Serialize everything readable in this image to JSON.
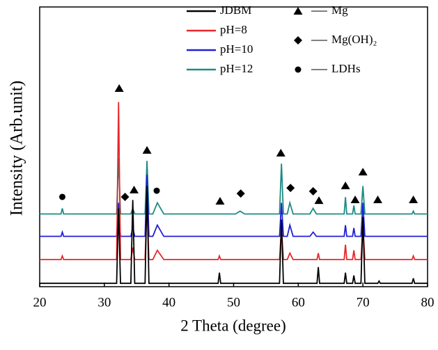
{
  "chart_data": {
    "type": "line",
    "x_label": "2 Theta (degree)",
    "y_label": "Intensity (Arb.unit)",
    "xlim": [
      20,
      80
    ],
    "xticks": [
      20,
      30,
      40,
      50,
      60,
      70,
      80
    ],
    "ylim": [
      0,
      100
    ],
    "series": [
      {
        "name": "JDBM",
        "color": "#000000",
        "x": [
          20,
          31.9,
          32.2,
          32.5,
          34.1,
          34.4,
          34.7,
          36.3,
          36.6,
          36.9,
          47.6,
          47.8,
          48.0,
          57.1,
          57.4,
          57.7,
          62.9,
          63.1,
          63.3,
          67.1,
          67.3,
          67.5,
          68.4,
          68.6,
          68.8,
          69.7,
          70.0,
          70.3,
          72.3,
          72.5,
          72.7,
          77.6,
          77.8,
          78.0,
          80
        ],
        "values": [
          1.2,
          1.2,
          28,
          1.2,
          1.2,
          31,
          1.2,
          1.2,
          36,
          1.2,
          1.2,
          5,
          1.2,
          1.2,
          24,
          1.2,
          1.2,
          7,
          1.2,
          1.2,
          5,
          1.2,
          1.2,
          4,
          1.2,
          1.2,
          25,
          1.2,
          1.2,
          2,
          1.2,
          1.2,
          3,
          1.2,
          1.2
        ]
      },
      {
        "name": "pH=8",
        "color": "#e8262a",
        "x": [
          20,
          23.3,
          23.5,
          23.7,
          31.9,
          32.2,
          32.5,
          34.1,
          34.4,
          34.7,
          36.3,
          36.6,
          36.9,
          37.5,
          38.2,
          39.2,
          47.6,
          47.8,
          48.0,
          57.1,
          57.4,
          57.7,
          58.3,
          58.7,
          59.2,
          62.9,
          63.1,
          63.3,
          67.1,
          67.3,
          67.5,
          68.4,
          68.6,
          68.8,
          69.7,
          70.0,
          70.3,
          77.6,
          77.8,
          78.0,
          80
        ],
        "values": [
          9.7,
          9.7,
          11,
          9.7,
          9.7,
          66,
          9.7,
          9.7,
          14,
          9.7,
          9.7,
          30,
          9.7,
          9.7,
          13,
          9.7,
          9.7,
          11,
          9.7,
          9.7,
          21,
          9.7,
          9.7,
          12,
          9.7,
          9.7,
          12,
          9.7,
          9.7,
          15,
          9.7,
          9.7,
          13,
          9.7,
          9.7,
          22,
          9.7,
          9.7,
          11,
          9.7,
          9.7
        ]
      },
      {
        "name": "pH=10",
        "color": "#1f1fd6",
        "x": [
          20,
          23.3,
          23.5,
          23.7,
          31.9,
          32.2,
          32.5,
          34.1,
          34.4,
          34.7,
          36.3,
          36.6,
          36.9,
          37.5,
          38.2,
          39.2,
          57.1,
          57.4,
          57.7,
          58.3,
          58.7,
          59.2,
          61.8,
          62.3,
          62.8,
          67.1,
          67.3,
          67.5,
          68.4,
          68.6,
          68.8,
          69.7,
          70.0,
          70.3,
          80
        ],
        "values": [
          18,
          18,
          19.5,
          18,
          18,
          30,
          18,
          18,
          21,
          18,
          18,
          40,
          18,
          18,
          22,
          18,
          18,
          30,
          18,
          18,
          22,
          18,
          18,
          19.5,
          18,
          18,
          22,
          18,
          18,
          21,
          18,
          18,
          30,
          18,
          18
        ]
      },
      {
        "name": "pH=12",
        "color": "#1e8a84",
        "x": [
          20,
          23.3,
          23.5,
          23.7,
          31.9,
          32.2,
          32.5,
          34.1,
          34.4,
          34.7,
          36.3,
          36.6,
          36.9,
          37.5,
          38.2,
          39.2,
          50.3,
          51.0,
          51.7,
          57.1,
          57.4,
          57.7,
          58.3,
          58.7,
          59.2,
          61.8,
          62.3,
          62.8,
          67.1,
          67.3,
          67.5,
          68.4,
          68.6,
          68.8,
          69.7,
          70.0,
          70.3,
          77.6,
          77.8,
          78.0,
          80
        ],
        "values": [
          26,
          26,
          28,
          26,
          26,
          46,
          26,
          26,
          28,
          26,
          26,
          45,
          26,
          26,
          30,
          26,
          26,
          27,
          26,
          26,
          44,
          26,
          26,
          30,
          26,
          26,
          28,
          26,
          26,
          32,
          26,
          26,
          29,
          26,
          26,
          36,
          26,
          26,
          27,
          26,
          26
        ]
      }
    ],
    "phases": [
      {
        "name": "Mg",
        "symbol": "triangle",
        "x": [
          32.3,
          34.6,
          36.6,
          47.9,
          57.3,
          63.2,
          67.3,
          68.8,
          70.0,
          72.3,
          77.8
        ],
        "values": [
          70.9,
          34.6,
          48.8,
          30.6,
          47.8,
          30.8,
          36.1,
          31.1,
          41,
          31.1,
          31.1
        ]
      },
      {
        "name": "Mg(OH)₂",
        "symbol": "diamond",
        "x": [
          33.2,
          51.1,
          58.8,
          62.3
        ],
        "values": [
          32.1,
          33.3,
          35.3,
          34.1
        ]
      },
      {
        "name": "LDHs",
        "symbol": "circle",
        "x": [
          23.5,
          38.1
        ],
        "values": [
          32.1,
          34.3
        ]
      }
    ]
  }
}
